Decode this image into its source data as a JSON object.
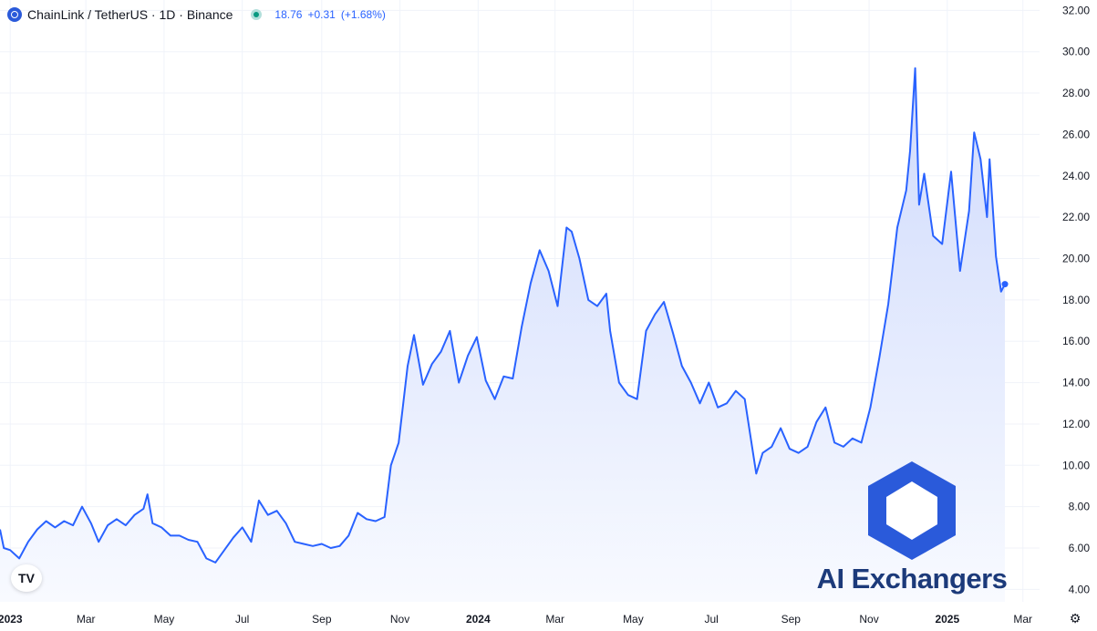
{
  "header": {
    "symbol_icon": "chainlink-icon",
    "title": "ChainLink / TetherUS · 1D · Binance",
    "status_icon": "market-status-dot-icon",
    "last_price": "18.76",
    "change": "+0.31",
    "change_pct": "(+1.68%)"
  },
  "watermark": {
    "logo_icon": "chainlink-hexagon-icon",
    "text": "AI Exchangers"
  },
  "logo_icon": "tradingview-logo-icon",
  "logo_text": "TV",
  "settings_icon": "gear-icon",
  "colors": {
    "line": "#2962ff",
    "area_top": "#cfdafc",
    "area_bottom": "#f8faff",
    "axis_text": "#131722",
    "grid": "#f0f3fa",
    "watermark_blue": "#2a5ada",
    "watermark_text": "#1c3a7a"
  },
  "chart_data": {
    "type": "area",
    "title": "",
    "xlabel": "",
    "ylabel": "",
    "ylim": [
      3.4,
      32.5
    ],
    "xlim": [
      "2022-12-24",
      "2025-03-14"
    ],
    "grid": true,
    "y_ticks": [
      "32.00",
      "30.00",
      "28.00",
      "26.00",
      "24.00",
      "22.00",
      "20.00",
      "18.00",
      "16.00",
      "14.00",
      "12.00",
      "10.00",
      "8.00",
      "6.00",
      "4.00"
    ],
    "x_ticks": [
      {
        "label": "2023",
        "date": "2023-01-01",
        "bold": true
      },
      {
        "label": "Mar",
        "date": "2023-03-01"
      },
      {
        "label": "May",
        "date": "2023-05-01"
      },
      {
        "label": "Jul",
        "date": "2023-07-01"
      },
      {
        "label": "Sep",
        "date": "2023-09-01"
      },
      {
        "label": "Nov",
        "date": "2023-11-01"
      },
      {
        "label": "2024",
        "date": "2024-01-01",
        "bold": true
      },
      {
        "label": "Mar",
        "date": "2024-03-01"
      },
      {
        "label": "May",
        "date": "2024-05-01"
      },
      {
        "label": "Jul",
        "date": "2024-07-01"
      },
      {
        "label": "Sep",
        "date": "2024-09-01"
      },
      {
        "label": "Nov",
        "date": "2024-11-01"
      },
      {
        "label": "2025",
        "date": "2025-01-01",
        "bold": true
      },
      {
        "label": "Mar",
        "date": "2025-03-01"
      }
    ],
    "series": [
      {
        "name": "",
        "x": [
          "2022-12-24",
          "2022-12-27",
          "2023-01-01",
          "2023-01-08",
          "2023-01-15",
          "2023-01-22",
          "2023-01-29",
          "2023-02-05",
          "2023-02-12",
          "2023-02-19",
          "2023-02-26",
          "2023-03-05",
          "2023-03-11",
          "2023-03-18",
          "2023-03-25",
          "2023-04-01",
          "2023-04-08",
          "2023-04-15",
          "2023-04-18",
          "2023-04-22",
          "2023-04-29",
          "2023-05-06",
          "2023-05-13",
          "2023-05-20",
          "2023-05-27",
          "2023-06-03",
          "2023-06-10",
          "2023-06-17",
          "2023-06-24",
          "2023-07-01",
          "2023-07-08",
          "2023-07-14",
          "2023-07-21",
          "2023-07-28",
          "2023-08-04",
          "2023-08-11",
          "2023-08-18",
          "2023-08-25",
          "2023-09-01",
          "2023-09-08",
          "2023-09-15",
          "2023-09-22",
          "2023-09-29",
          "2023-10-06",
          "2023-10-13",
          "2023-10-20",
          "2023-10-25",
          "2023-10-31",
          "2023-11-07",
          "2023-11-12",
          "2023-11-19",
          "2023-11-26",
          "2023-12-03",
          "2023-12-10",
          "2023-12-17",
          "2023-12-24",
          "2023-12-31",
          "2024-01-07",
          "2024-01-14",
          "2024-01-21",
          "2024-01-28",
          "2024-02-04",
          "2024-02-11",
          "2024-02-18",
          "2024-02-25",
          "2024-03-03",
          "2024-03-10",
          "2024-03-14",
          "2024-03-20",
          "2024-03-27",
          "2024-04-03",
          "2024-04-10",
          "2024-04-13",
          "2024-04-20",
          "2024-04-27",
          "2024-05-04",
          "2024-05-11",
          "2024-05-18",
          "2024-05-25",
          "2024-06-01",
          "2024-06-08",
          "2024-06-15",
          "2024-06-22",
          "2024-06-29",
          "2024-07-06",
          "2024-07-13",
          "2024-07-20",
          "2024-07-27",
          "2024-08-05",
          "2024-08-10",
          "2024-08-17",
          "2024-08-24",
          "2024-08-31",
          "2024-09-07",
          "2024-09-14",
          "2024-09-21",
          "2024-09-28",
          "2024-10-05",
          "2024-10-12",
          "2024-10-19",
          "2024-10-26",
          "2024-11-02",
          "2024-11-09",
          "2024-11-16",
          "2024-11-23",
          "2024-11-30",
          "2024-12-03",
          "2024-12-07",
          "2024-12-10",
          "2024-12-14",
          "2024-12-21",
          "2024-12-28",
          "2025-01-04",
          "2025-01-11",
          "2025-01-18",
          "2025-01-22",
          "2025-01-27",
          "2025-02-01",
          "2025-02-03",
          "2025-02-08",
          "2025-02-12",
          "2025-02-15"
        ],
        "values": [
          6.9,
          6.0,
          5.9,
          5.5,
          6.3,
          6.9,
          7.3,
          7.0,
          7.3,
          7.1,
          8.0,
          7.2,
          6.3,
          7.1,
          7.4,
          7.1,
          7.6,
          7.9,
          8.6,
          7.2,
          7.0,
          6.6,
          6.6,
          6.4,
          6.3,
          5.5,
          5.3,
          5.9,
          6.5,
          7.0,
          6.3,
          8.3,
          7.6,
          7.8,
          7.2,
          6.3,
          6.2,
          6.1,
          6.2,
          6.0,
          6.1,
          6.6,
          7.7,
          7.4,
          7.3,
          7.5,
          10.0,
          11.1,
          14.8,
          16.3,
          13.9,
          14.9,
          15.5,
          16.5,
          14.0,
          15.3,
          16.2,
          14.1,
          13.2,
          14.3,
          14.2,
          16.7,
          18.8,
          20.4,
          19.4,
          17.7,
          21.5,
          21.3,
          20.0,
          18.0,
          17.7,
          18.3,
          16.5,
          14.0,
          13.4,
          13.2,
          16.5,
          17.3,
          17.9,
          16.4,
          14.8,
          14.0,
          13.0,
          14.0,
          12.8,
          13.0,
          13.6,
          13.2,
          9.6,
          10.6,
          10.9,
          11.8,
          10.8,
          10.6,
          10.9,
          12.1,
          12.8,
          11.1,
          10.9,
          11.3,
          11.1,
          12.8,
          15.2,
          17.8,
          21.5,
          23.3,
          25.2,
          29.2,
          22.6,
          24.1,
          21.1,
          20.7,
          24.2,
          19.4,
          22.3,
          26.1,
          24.8,
          22.0,
          24.8,
          20.1,
          18.4,
          18.76
        ]
      }
    ],
    "last_value_marker": 18.76
  }
}
